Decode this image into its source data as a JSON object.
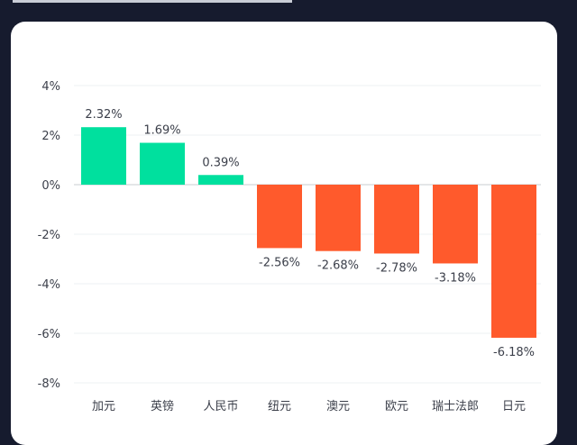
{
  "chart_data": {
    "type": "bar",
    "categories": [
      "加元",
      "英镑",
      "人民币",
      "纽元",
      "澳元",
      "欧元",
      "瑞士法郎",
      "日元"
    ],
    "values": [
      2.32,
      1.69,
      0.39,
      -2.56,
      -2.68,
      -2.78,
      -3.18,
      -6.18
    ],
    "value_labels": [
      "2.32%",
      "1.69%",
      "0.39%",
      "-2.56%",
      "-2.68%",
      "-2.78%",
      "-3.18%",
      "-6.18%"
    ],
    "ylim": [
      -8,
      4
    ],
    "yticks": [
      4,
      2,
      0,
      -2,
      -4,
      -6,
      -8
    ],
    "ytick_labels": [
      "4%",
      "2%",
      "0%",
      "-2%",
      "-4%",
      "-6%",
      "-8%"
    ],
    "grid": true,
    "colors": {
      "positive": "#00e09e",
      "negative": "#ff5a2c"
    }
  }
}
